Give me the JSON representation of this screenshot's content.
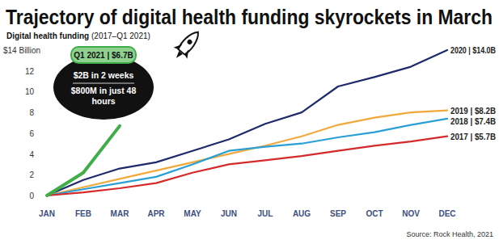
{
  "chart_data": {
    "type": "line",
    "title": "Trajectory of digital health funding skyrockets in March",
    "subtitle": "Digital health funding (2017–Q1 2021)",
    "categories": [
      "JAN",
      "FEB",
      "MAR",
      "APR",
      "MAY",
      "JUN",
      "JUL",
      "AUG",
      "SEP",
      "OCT",
      "NOV",
      "DEC"
    ],
    "series": [
      {
        "name": "2020 | $14.0B",
        "color": "#1f2a6b",
        "values": [
          0,
          1.5,
          2.6,
          3.2,
          4.3,
          5.4,
          6.9,
          8.0,
          10.5,
          11.4,
          12.4,
          14.0
        ]
      },
      {
        "name": "2019 | $8.2B",
        "color": "#f2a93b",
        "values": [
          0,
          0.8,
          1.6,
          2.4,
          3.2,
          4.0,
          4.8,
          5.7,
          6.8,
          7.5,
          8.0,
          8.2
        ]
      },
      {
        "name": "2018 | $7.4B",
        "color": "#2a9fd6",
        "values": [
          0,
          0.6,
          1.2,
          1.8,
          3.0,
          4.3,
          4.7,
          5.0,
          5.6,
          6.1,
          6.8,
          7.4
        ]
      },
      {
        "name": "2017 | $5.7B",
        "color": "#d42a2a",
        "values": [
          0,
          0.3,
          0.7,
          1.2,
          2.2,
          3.0,
          3.4,
          3.8,
          4.3,
          4.8,
          5.2,
          5.7
        ]
      },
      {
        "name": "Q1 2021 | $6.7B",
        "color": "#3fae49",
        "values": [
          0,
          2.2,
          6.7,
          null,
          null,
          null,
          null,
          null,
          null,
          null,
          null,
          null
        ]
      }
    ],
    "ylim": [
      0,
      14
    ],
    "yticks": [
      0,
      2,
      4,
      6,
      8,
      10,
      12,
      {
        "value": 14,
        "label": "$14 Billion"
      }
    ],
    "grid": false,
    "annotations": [
      "$2B in 2 weeks",
      "$800M in just 48 hours"
    ],
    "source": "Source: Rock Health, 2021"
  }
}
